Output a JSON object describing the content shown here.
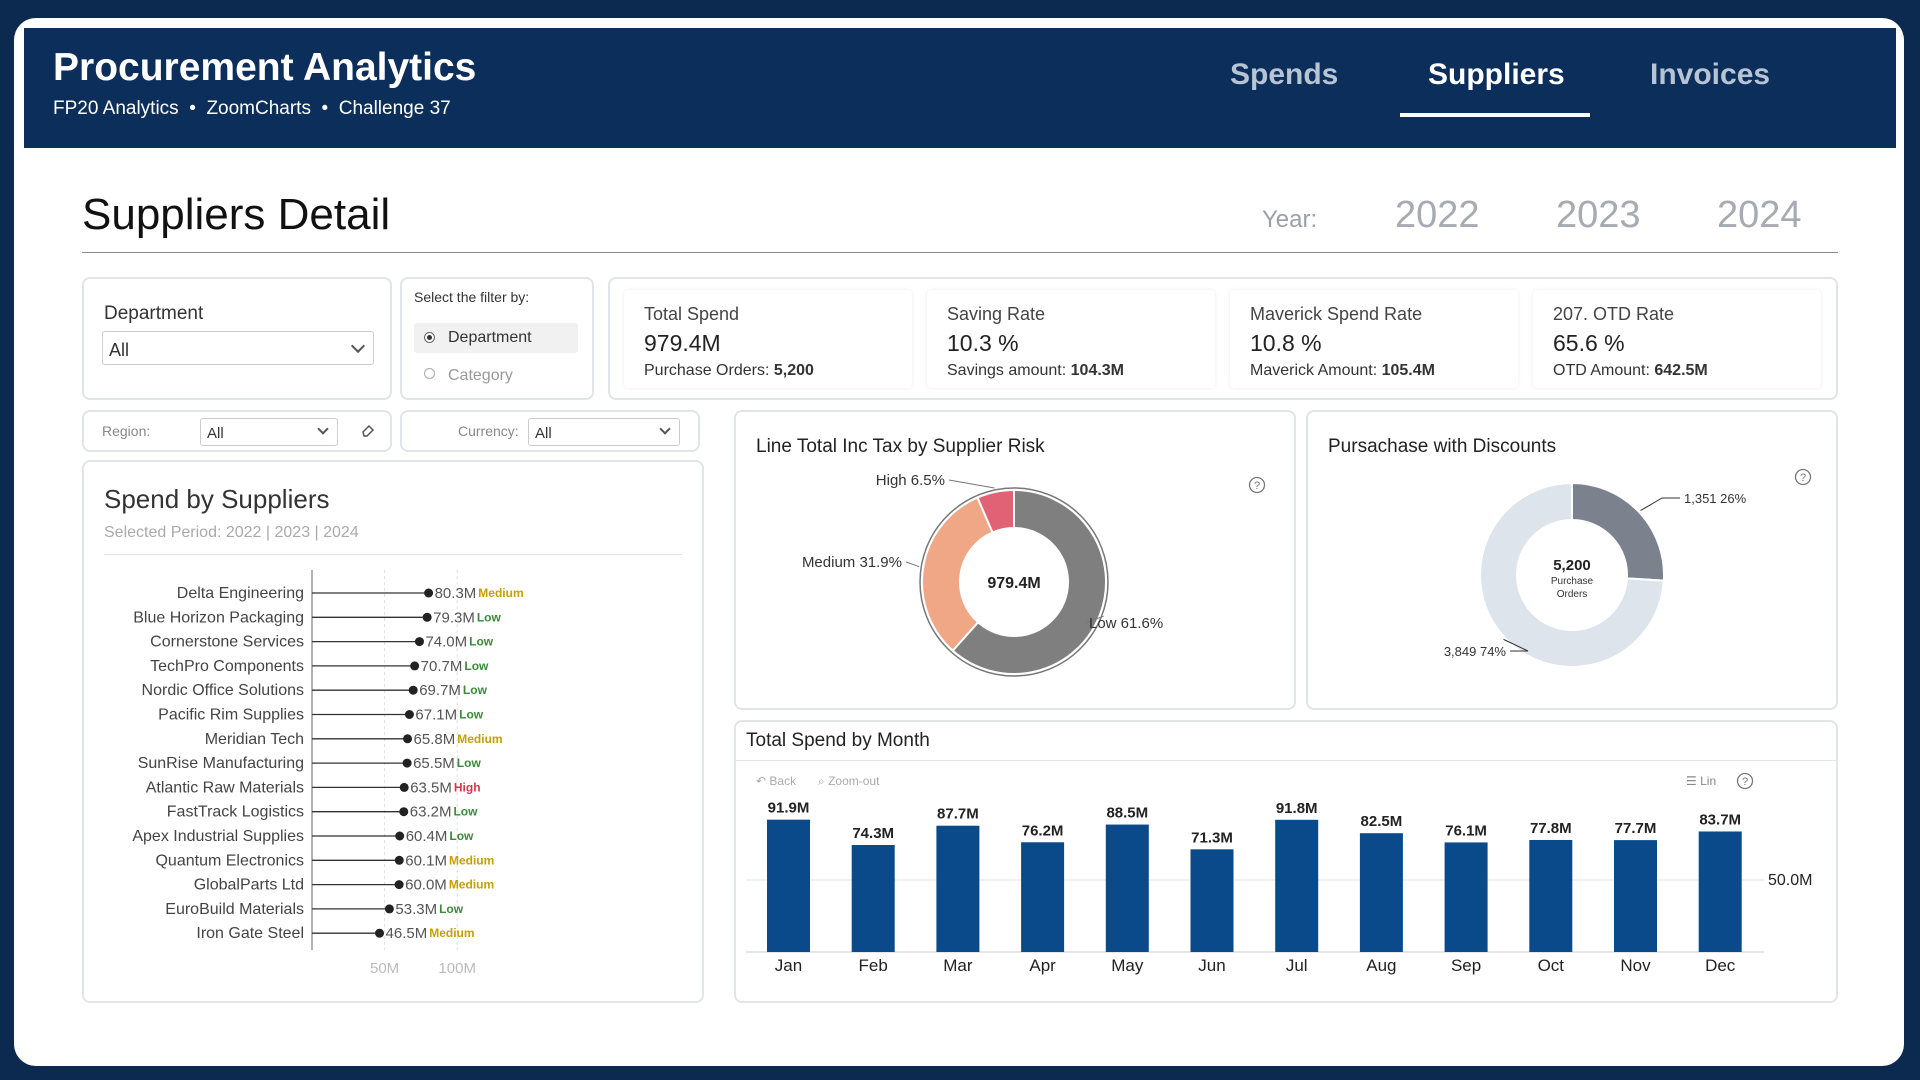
{
  "app": {
    "title": "Procurement Analytics",
    "subtitle": "FP20 Analytics  •  ZoomCharts  •  Challenge 37"
  },
  "nav": {
    "tabs": [
      {
        "label": "Spends",
        "active": false
      },
      {
        "label": "Suppliers",
        "active": true
      },
      {
        "label": "Invoices",
        "active": false
      }
    ]
  },
  "page": {
    "title": "Suppliers Detail",
    "year_label": "Year:",
    "years": [
      "2022",
      "2023",
      "2024"
    ]
  },
  "filters": {
    "department": {
      "label": "Department",
      "value": "All"
    },
    "filter_by": {
      "title": "Select the filter by:",
      "options": [
        "Department",
        "Category"
      ],
      "selected": "Department"
    },
    "region": {
      "label": "Region:",
      "value": "All"
    },
    "currency": {
      "label": "Currency:",
      "value": "All"
    }
  },
  "kpis": [
    {
      "label": "Total Spend",
      "value": "979.4M",
      "sub_label": "Purchase Orders:",
      "sub_value": "5,200"
    },
    {
      "label": "Saving Rate",
      "value": "10.3 %",
      "sub_label": "Savings amount:",
      "sub_value": "104.3M"
    },
    {
      "label": "Maverick Spend Rate",
      "value": "10.8 %",
      "sub_label": "Maverick Amount:",
      "sub_value": "105.4M"
    },
    {
      "label": "207. OTD Rate",
      "value": "65.6 %",
      "sub_label": "OTD Amount:",
      "sub_value": "642.5M"
    }
  ],
  "colors": {
    "navy": "#0c2e5a",
    "bar": "#0a4a8a",
    "risk_low": "#7f7f7f",
    "risk_medium": "#efa785",
    "risk_high": "#e06274",
    "tag_low": "#3a8a3a",
    "tag_medium": "#c4a000",
    "tag_high": "#d03a4a",
    "disc_yes": "#7b828d",
    "disc_no": "#dde4ec"
  },
  "chart_data": [
    {
      "type": "lollipop",
      "title": "Spend by Suppliers",
      "subtitle": "Selected Period: 2022 | 2023 | 2024",
      "xticks": [
        "50M",
        "100M"
      ],
      "xlim": [
        0,
        100
      ],
      "unit": "M",
      "categories": [
        "Delta Engineering",
        "Blue Horizon Packaging",
        "Cornerstone Services",
        "TechPro Components",
        "Nordic Office Solutions",
        "Pacific Rim Supplies",
        "Meridian Tech",
        "SunRise Manufacturing",
        "Atlantic Raw Materials",
        "FastTrack Logistics",
        "Apex Industrial Supplies",
        "Quantum Electronics",
        "GlobalParts Ltd",
        "EuroBuild Materials",
        "Iron Gate Steel"
      ],
      "values": [
        80.3,
        79.3,
        74.0,
        70.7,
        69.7,
        67.1,
        65.8,
        65.5,
        63.5,
        63.2,
        60.4,
        60.1,
        60.0,
        53.3,
        46.5
      ],
      "labels": [
        "80.3M",
        "79.3M",
        "74.0M",
        "70.7M",
        "69.7M",
        "67.1M",
        "65.8M",
        "65.5M",
        "63.5M",
        "63.2M",
        "60.4M",
        "60.1M",
        "60.0M",
        "53.3M",
        "46.5M"
      ],
      "risk": [
        "Medium",
        "Low",
        "Low",
        "Low",
        "Low",
        "Low",
        "Medium",
        "Low",
        "High",
        "Low",
        "Low",
        "Medium",
        "Medium",
        "Low",
        "Medium"
      ]
    },
    {
      "type": "pie",
      "title": "Line Total Inc Tax by Supplier Risk",
      "center_label": "979.4M",
      "slices": [
        {
          "name": "Low",
          "value": 61.6,
          "label": "Low 61.6%"
        },
        {
          "name": "Medium",
          "value": 31.9,
          "label": "Medium 31.9%"
        },
        {
          "name": "High",
          "value": 6.5,
          "label": "High 6.5%"
        }
      ]
    },
    {
      "type": "pie",
      "title": "Pursachase with Discounts",
      "center_value": "5,200",
      "center_caption": [
        "Purchase",
        "Orders"
      ],
      "slices": [
        {
          "value": 1351,
          "pct": 26,
          "label": "1,351 26%"
        },
        {
          "value": 3849,
          "pct": 74,
          "label": "3,849 74%"
        }
      ]
    },
    {
      "type": "bar",
      "title": "Total Spend by Month",
      "toolbar": {
        "back": "Back",
        "zoom": "Zoom-out",
        "scale": "Lin"
      },
      "categories": [
        "Jan",
        "Feb",
        "Mar",
        "Apr",
        "May",
        "Jun",
        "Jul",
        "Aug",
        "Sep",
        "Oct",
        "Nov",
        "Dec"
      ],
      "values": [
        91.9,
        74.3,
        87.7,
        76.2,
        88.5,
        71.3,
        91.8,
        82.5,
        76.1,
        77.8,
        77.7,
        83.7
      ],
      "labels": [
        "91.9M",
        "74.3M",
        "87.7M",
        "76.2M",
        "88.5M",
        "71.3M",
        "91.8M",
        "82.5M",
        "76.1M",
        "77.8M",
        "77.7M",
        "83.7M"
      ],
      "y_tick": {
        "value": 50,
        "label": "50.0M"
      },
      "unit": "M"
    }
  ]
}
